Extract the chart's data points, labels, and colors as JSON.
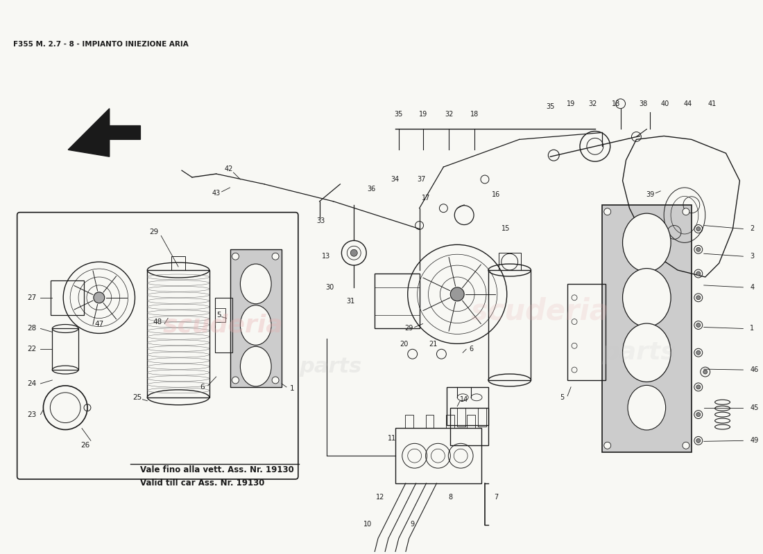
{
  "title": "F355 M. 2.7 - 8 - IMPIANTO INIEZIONE ARIA",
  "watermark_line1": "Vale fino alla vett. Ass. Nr. 19130",
  "watermark_line2": "Valid till car Ass. Nr. 19130",
  "bg_color": "#f8f8f4",
  "line_color": "#1a1a1a",
  "title_fontsize": 7.5,
  "label_fontsize": 7.0,
  "fig_width": 11.0,
  "fig_height": 8.0,
  "dpi": 100,
  "watermark_color_r": "#e8b0b0",
  "watermark_color_g": "#c8c8c8"
}
